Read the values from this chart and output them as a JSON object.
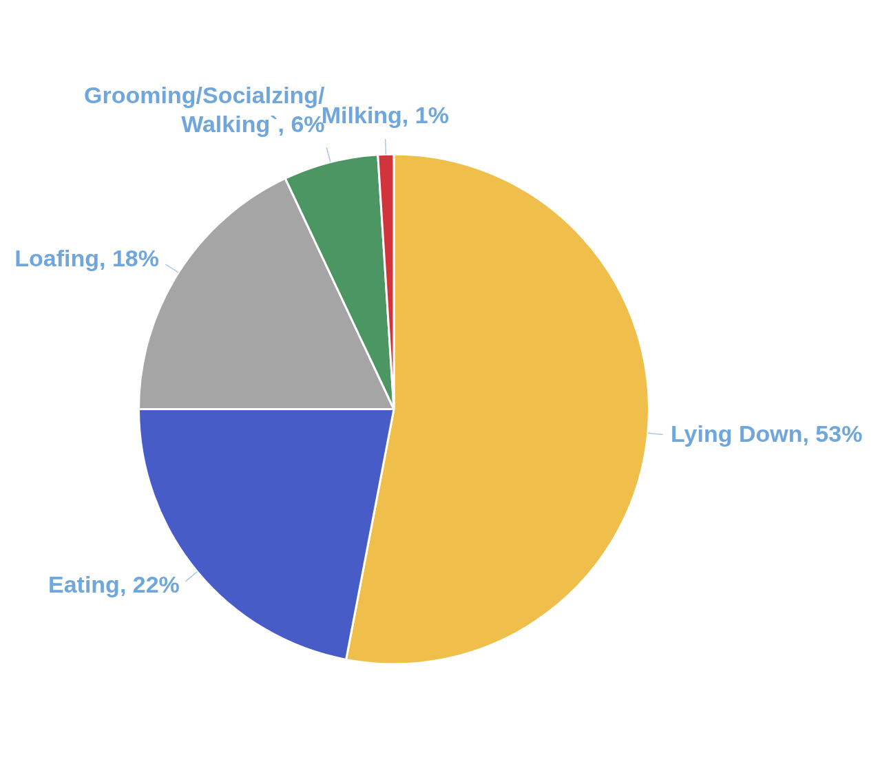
{
  "chart_data": {
    "type": "pie",
    "categories": [
      "Lying Down",
      "Eating",
      "Loafing",
      "Grooming/Socialzing/Walking`",
      "Milking"
    ],
    "values": [
      53,
      22,
      18,
      6,
      1
    ],
    "value_labels": [
      "53%",
      "22%",
      "18%",
      "6%",
      "1%"
    ],
    "colors": [
      "#f0be4a",
      "#485cc7",
      "#a5a5a5",
      "#4c9663",
      "#d1343a"
    ]
  }
}
